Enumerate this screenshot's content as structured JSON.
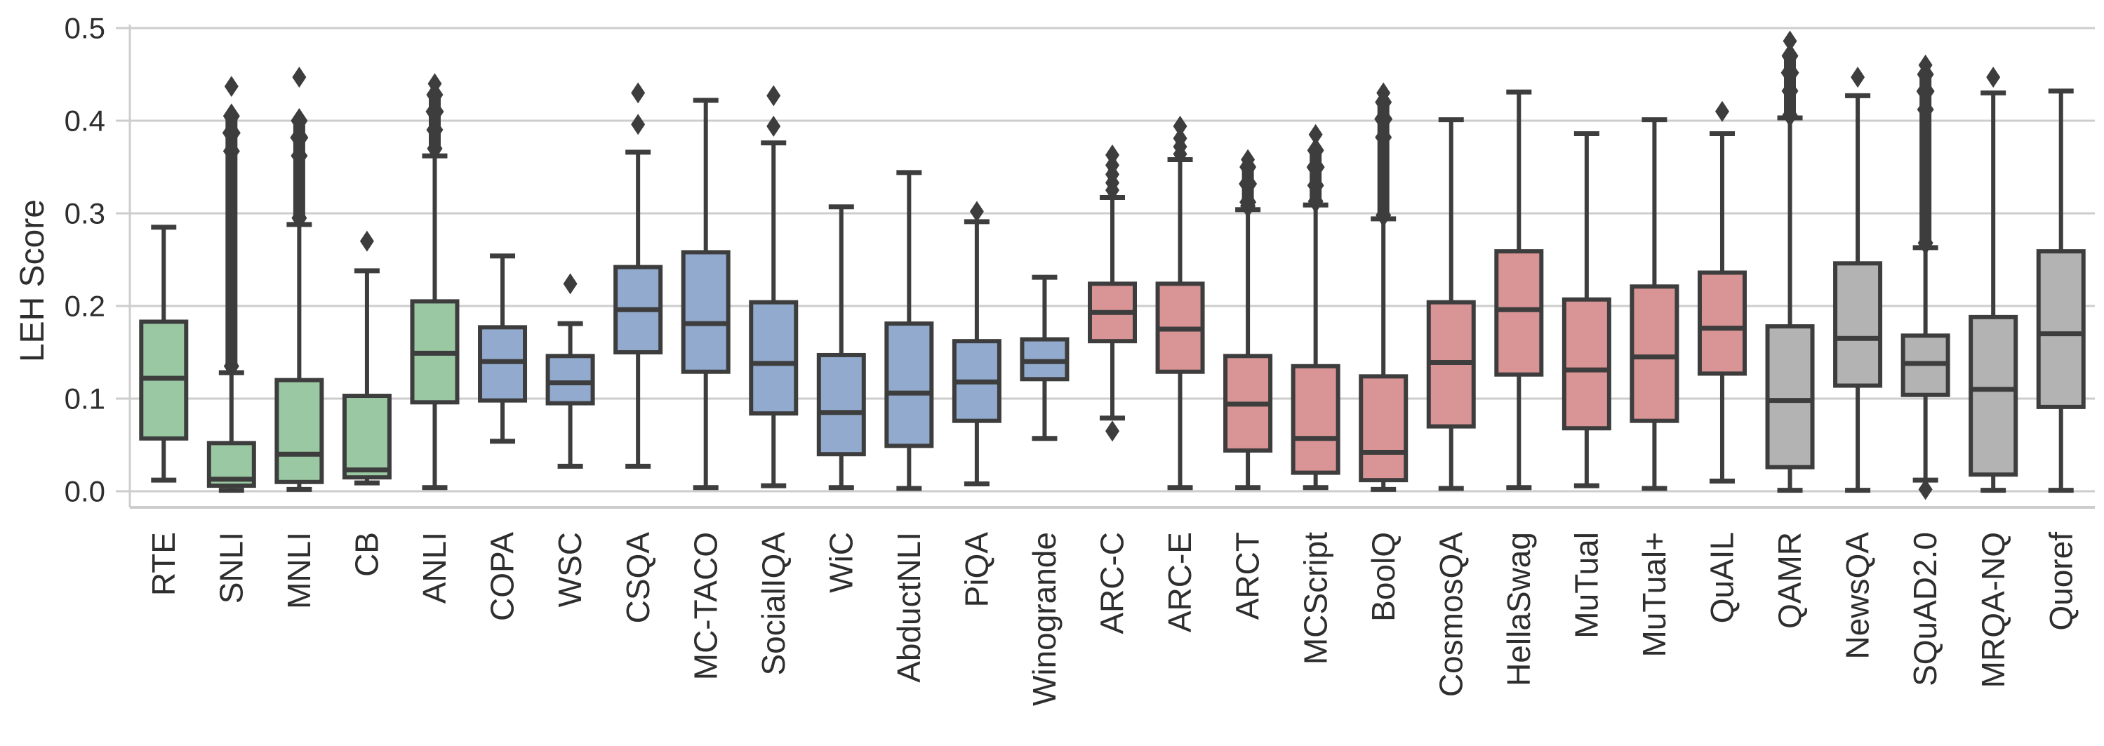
{
  "figure": {
    "title": "",
    "ylabel": "LEH Score"
  },
  "chart_data": {
    "type": "box",
    "title": "",
    "xlabel": "",
    "ylabel": "LEH Score",
    "ylim": [
      0.0,
      0.5
    ],
    "grid": "horizontal",
    "legend": "none",
    "yticks": [
      {
        "label": "0.0",
        "value": 0.0
      },
      {
        "label": "0.1",
        "value": 0.1
      },
      {
        "label": "0.2",
        "value": 0.2
      },
      {
        "label": "0.3",
        "value": 0.3
      },
      {
        "label": "0.4",
        "value": 0.4
      },
      {
        "label": "0.5",
        "value": 0.5
      }
    ],
    "palette": {
      "green": "#99c8a2",
      "blue": "#92aacd",
      "pink": "#d99495",
      "gray": "#b3b3b3"
    },
    "box_outline_color": "#3d3d3d",
    "gridline_color": "#cdcdcd",
    "categories": [
      {
        "label": "RTE",
        "group": "green",
        "whisker_low": 0.012,
        "q1": 0.057,
        "median": 0.122,
        "q3": 0.183,
        "whisker_high": 0.285,
        "outliers": [],
        "dense_outlier_range": null
      },
      {
        "label": "SNLI",
        "group": "green",
        "whisker_low": 0.001,
        "q1": 0.006,
        "median": 0.013,
        "q3": 0.052,
        "whisker_high": 0.128,
        "outliers": [
          0.437
        ],
        "dense_outlier_range": [
          0.135,
          0.405
        ]
      },
      {
        "label": "MNLI",
        "group": "green",
        "whisker_low": 0.002,
        "q1": 0.01,
        "median": 0.04,
        "q3": 0.12,
        "whisker_high": 0.288,
        "outliers": [
          0.447
        ],
        "dense_outlier_range": [
          0.295,
          0.4
        ]
      },
      {
        "label": "CB",
        "group": "green",
        "whisker_low": 0.009,
        "q1": 0.015,
        "median": 0.023,
        "q3": 0.103,
        "whisker_high": 0.238,
        "outliers": [
          0.27
        ],
        "dense_outlier_range": null
      },
      {
        "label": "ANLI",
        "group": "green",
        "whisker_low": 0.004,
        "q1": 0.096,
        "median": 0.149,
        "q3": 0.205,
        "whisker_high": 0.362,
        "outliers": [
          0.44
        ],
        "dense_outlier_range": [
          0.37,
          0.428
        ]
      },
      {
        "label": "COPA",
        "group": "blue",
        "whisker_low": 0.054,
        "q1": 0.098,
        "median": 0.14,
        "q3": 0.177,
        "whisker_high": 0.254,
        "outliers": [],
        "dense_outlier_range": null
      },
      {
        "label": "WSC",
        "group": "blue",
        "whisker_low": 0.027,
        "q1": 0.095,
        "median": 0.117,
        "q3": 0.146,
        "whisker_high": 0.181,
        "outliers": [
          0.224
        ],
        "dense_outlier_range": null
      },
      {
        "label": "CSQA",
        "group": "blue",
        "whisker_low": 0.027,
        "q1": 0.15,
        "median": 0.196,
        "q3": 0.242,
        "whisker_high": 0.366,
        "outliers": [
          0.396,
          0.43
        ],
        "dense_outlier_range": null
      },
      {
        "label": "MC-TACO",
        "group": "blue",
        "whisker_low": 0.004,
        "q1": 0.129,
        "median": 0.181,
        "q3": 0.258,
        "whisker_high": 0.422,
        "outliers": [],
        "dense_outlier_range": null
      },
      {
        "label": "SocialIQA",
        "group": "blue",
        "whisker_low": 0.006,
        "q1": 0.084,
        "median": 0.138,
        "q3": 0.204,
        "whisker_high": 0.376,
        "outliers": [
          0.394,
          0.427
        ],
        "dense_outlier_range": null
      },
      {
        "label": "WiC",
        "group": "blue",
        "whisker_low": 0.004,
        "q1": 0.04,
        "median": 0.085,
        "q3": 0.147,
        "whisker_high": 0.307,
        "outliers": [],
        "dense_outlier_range": null
      },
      {
        "label": "AbductNLI",
        "group": "blue",
        "whisker_low": 0.003,
        "q1": 0.049,
        "median": 0.106,
        "q3": 0.181,
        "whisker_high": 0.344,
        "outliers": [],
        "dense_outlier_range": null
      },
      {
        "label": "PiQA",
        "group": "blue",
        "whisker_low": 0.008,
        "q1": 0.076,
        "median": 0.118,
        "q3": 0.162,
        "whisker_high": 0.291,
        "outliers": [
          0.302
        ],
        "dense_outlier_range": null
      },
      {
        "label": "Winogrande",
        "group": "blue",
        "whisker_low": 0.057,
        "q1": 0.121,
        "median": 0.14,
        "q3": 0.164,
        "whisker_high": 0.231,
        "outliers": [],
        "dense_outlier_range": null
      },
      {
        "label": "ARC-C",
        "group": "pink",
        "whisker_low": 0.079,
        "q1": 0.162,
        "median": 0.193,
        "q3": 0.224,
        "whisker_high": 0.317,
        "outliers": [
          0.325,
          0.333,
          0.342,
          0.352,
          0.363,
          0.065
        ],
        "dense_outlier_range": null
      },
      {
        "label": "ARC-E",
        "group": "pink",
        "whisker_low": 0.004,
        "q1": 0.129,
        "median": 0.175,
        "q3": 0.224,
        "whisker_high": 0.358,
        "outliers": [
          0.364,
          0.372,
          0.381,
          0.394
        ],
        "dense_outlier_range": null
      },
      {
        "label": "ARCT",
        "group": "pink",
        "whisker_low": 0.004,
        "q1": 0.044,
        "median": 0.094,
        "q3": 0.146,
        "whisker_high": 0.304,
        "outliers": [
          0.358
        ],
        "dense_outlier_range": [
          0.308,
          0.35
        ]
      },
      {
        "label": "MCScript",
        "group": "pink",
        "whisker_low": 0.004,
        "q1": 0.02,
        "median": 0.057,
        "q3": 0.135,
        "whisker_high": 0.309,
        "outliers": [
          0.385
        ],
        "dense_outlier_range": [
          0.313,
          0.368
        ]
      },
      {
        "label": "BoolQ",
        "group": "pink",
        "whisker_low": 0.002,
        "q1": 0.012,
        "median": 0.042,
        "q3": 0.124,
        "whisker_high": 0.294,
        "outliers": [
          0.43
        ],
        "dense_outlier_range": [
          0.298,
          0.42
        ]
      },
      {
        "label": "CosmosQA",
        "group": "pink",
        "whisker_low": 0.003,
        "q1": 0.07,
        "median": 0.139,
        "q3": 0.204,
        "whisker_high": 0.401,
        "outliers": [],
        "dense_outlier_range": null
      },
      {
        "label": "HellaSwag",
        "group": "pink",
        "whisker_low": 0.004,
        "q1": 0.126,
        "median": 0.196,
        "q3": 0.259,
        "whisker_high": 0.431,
        "outliers": [],
        "dense_outlier_range": null
      },
      {
        "label": "MuTual",
        "group": "pink",
        "whisker_low": 0.006,
        "q1": 0.068,
        "median": 0.131,
        "q3": 0.207,
        "whisker_high": 0.386,
        "outliers": [],
        "dense_outlier_range": null
      },
      {
        "label": "MuTual+",
        "group": "pink",
        "whisker_low": 0.003,
        "q1": 0.076,
        "median": 0.145,
        "q3": 0.221,
        "whisker_high": 0.401,
        "outliers": [],
        "dense_outlier_range": null
      },
      {
        "label": "QuAIL",
        "group": "pink",
        "whisker_low": 0.011,
        "q1": 0.127,
        "median": 0.176,
        "q3": 0.236,
        "whisker_high": 0.386,
        "outliers": [
          0.41
        ],
        "dense_outlier_range": null
      },
      {
        "label": "QAMR",
        "group": "gray",
        "whisker_low": 0.001,
        "q1": 0.026,
        "median": 0.098,
        "q3": 0.178,
        "whisker_high": 0.403,
        "outliers": [
          0.486
        ],
        "dense_outlier_range": [
          0.406,
          0.47
        ]
      },
      {
        "label": "NewsQA",
        "group": "gray",
        "whisker_low": 0.001,
        "q1": 0.114,
        "median": 0.165,
        "q3": 0.246,
        "whisker_high": 0.427,
        "outliers": [
          0.447
        ],
        "dense_outlier_range": null
      },
      {
        "label": "SQuAD2.0",
        "group": "gray",
        "whisker_low": 0.012,
        "q1": 0.104,
        "median": 0.138,
        "q3": 0.168,
        "whisker_high": 0.263,
        "outliers": [
          0.46,
          0.002
        ],
        "dense_outlier_range": [
          0.268,
          0.45
        ]
      },
      {
        "label": "MRQA-NQ",
        "group": "gray",
        "whisker_low": 0.001,
        "q1": 0.018,
        "median": 0.11,
        "q3": 0.188,
        "whisker_high": 0.43,
        "outliers": [
          0.447
        ],
        "dense_outlier_range": null
      },
      {
        "label": "Quoref",
        "group": "gray",
        "whisker_low": 0.001,
        "q1": 0.091,
        "median": 0.17,
        "q3": 0.259,
        "whisker_high": 0.432,
        "outliers": [],
        "dense_outlier_range": null
      }
    ]
  }
}
